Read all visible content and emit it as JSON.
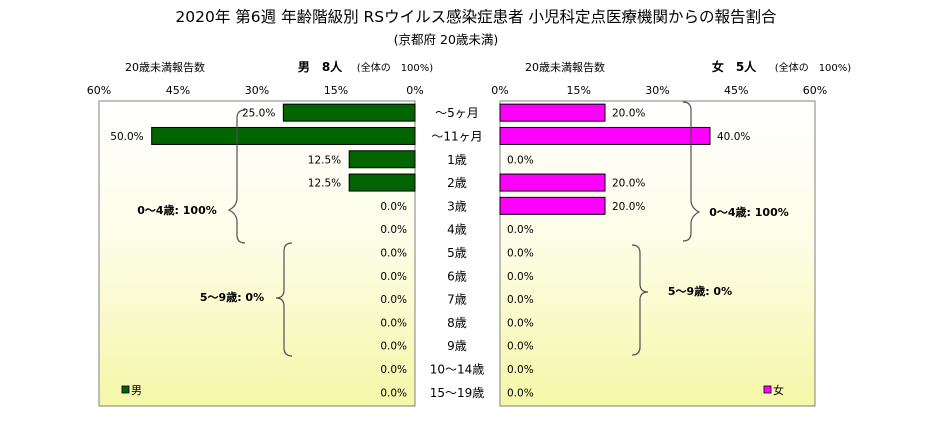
{
  "header": {
    "title": "2020年 第6週 年齢階級別 RSウイルス感染症患者 小児科定点医療機関からの報告割合",
    "subtitle": "(京都府 20歳未満)"
  },
  "chart_data": {
    "type": "bar",
    "orientation": "horizontal-butterfly",
    "categories": [
      "～5ヶ月",
      "～11ヶ月",
      "1歳",
      "2歳",
      "3歳",
      "4歳",
      "5歳",
      "6歳",
      "7歳",
      "8歳",
      "9歳",
      "10～14歳",
      "15～19歳"
    ],
    "xlim": [
      0,
      60
    ],
    "ticks": [
      "0%",
      "15%",
      "30%",
      "45%",
      "60%"
    ],
    "series": [
      {
        "name": "男",
        "side": "left",
        "color": "#006400",
        "values": [
          25.0,
          50.0,
          12.5,
          12.5,
          0.0,
          0.0,
          0.0,
          0.0,
          0.0,
          0.0,
          0.0,
          0.0,
          0.0
        ],
        "labels": [
          "25.0%",
          "50.0%",
          "12.5%",
          "12.5%",
          "0.0%",
          "0.0%",
          "0.0%",
          "0.0%",
          "0.0%",
          "0.0%",
          "0.0%",
          "0.0%",
          "0.0%"
        ],
        "axis_left_label": "20歳未満報告数",
        "axis_right_label": "男　8人",
        "axis_note": "(全体の　100%)",
        "legend": "男",
        "group_labels": [
          "0～4歳: 100%",
          "5～9歳: 0%"
        ]
      },
      {
        "name": "女",
        "side": "right",
        "color": "#ff00ff",
        "values": [
          20.0,
          40.0,
          0.0,
          20.0,
          20.0,
          0.0,
          0.0,
          0.0,
          0.0,
          0.0,
          0.0,
          0.0,
          0.0
        ],
        "labels": [
          "20.0%",
          "40.0%",
          "0.0%",
          "20.0%",
          "20.0%",
          "0.0%",
          "0.0%",
          "0.0%",
          "0.0%",
          "0.0%",
          "0.0%",
          "0.0%",
          "0.0%"
        ],
        "axis_left_label": "20歳未満報告数",
        "axis_right_label": "女　5人",
        "axis_note": "(全体の　100%)",
        "legend": "女",
        "group_labels": [
          "0～4歳: 100%",
          "5～9歳: 0%"
        ]
      }
    ]
  }
}
